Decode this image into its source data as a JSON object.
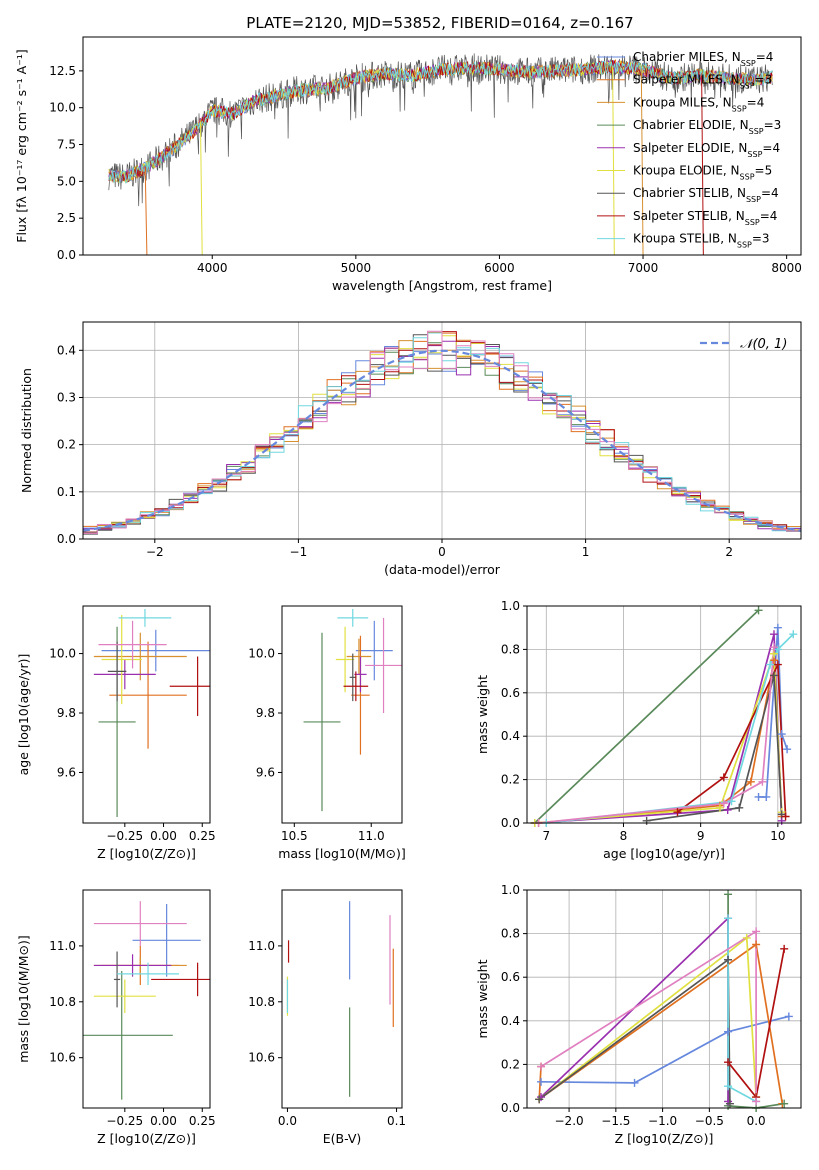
{
  "title": "PLATE=2120, MJD=53852, FIBERID=0164, z=0.167",
  "colors": {
    "chabrier_miles": "#6688dd",
    "salpeter_miles": "#e07020",
    "kroupa_miles": "#d89030",
    "chabrier_elodie": "#5a8a5a",
    "salpeter_elodie": "#9a30b0",
    "kroupa_elodie": "#e0e040",
    "chabrier_stelib": "#555555",
    "salpeter_stelib": "#b01010",
    "kroupa_stelib": "#70d8e0",
    "pink": "#e080c0",
    "normal": "#6688dd"
  },
  "chart_data": [
    {
      "id": "spectrum",
      "type": "line",
      "xlabel": "wavelength [Angstrom, rest frame]",
      "ylabel": "Flux [fλ 10⁻¹⁷ erg cm⁻² s⁻¹ A⁻¹]",
      "xlim": [
        3100,
        8100
      ],
      "ylim": [
        0,
        14.8
      ],
      "xticks": [
        "4000",
        "5000",
        "6000",
        "7000",
        "8000"
      ],
      "yticks": [
        "0.0",
        "2.5",
        "5.0",
        "7.5",
        "10.0",
        "12.5"
      ],
      "x": [
        3280,
        3400,
        3550,
        3700,
        3850,
        4000,
        4150,
        4300,
        4450,
        4600,
        4800,
        5000,
        5200,
        5400,
        5600,
        5800,
        6000,
        6200,
        6400,
        6600,
        6800,
        7000,
        7200,
        7400,
        7600,
        7800,
        7900
      ],
      "y": [
        5.4,
        5.3,
        6.0,
        7.0,
        8.2,
        9.8,
        9.6,
        10.5,
        10.8,
        11.2,
        11.3,
        12.0,
        12.3,
        12.2,
        12.6,
        12.7,
        12.6,
        12.4,
        12.5,
        12.6,
        12.8,
        12.6,
        12.0,
        12.2,
        12.0,
        11.9,
        12.1
      ],
      "legend": [
        {
          "label": "Chabrier MILES, N",
          "sub": "SSP",
          "tail": "=4"
        },
        {
          "label": "Salpeter MILES, N",
          "sub": "SSP",
          "tail": "=3"
        },
        {
          "label": "Kroupa MILES, N",
          "sub": "SSP",
          "tail": "=4"
        },
        {
          "label": "Chabrier ELODIE, N",
          "sub": "SSP",
          "tail": "=3"
        },
        {
          "label": "Salpeter ELODIE, N",
          "sub": "SSP",
          "tail": "=4"
        },
        {
          "label": "Kroupa ELODIE, N",
          "sub": "SSP",
          "tail": "=5"
        },
        {
          "label": "Chabrier STELIB, N",
          "sub": "SSP",
          "tail": "=4"
        },
        {
          "label": "Salpeter STELIB, N",
          "sub": "SSP",
          "tail": "=4"
        },
        {
          "label": "Kroupa STELIB, N",
          "sub": "SSP",
          "tail": "=3"
        }
      ],
      "legend_placement": "right"
    },
    {
      "id": "residuals",
      "type": "histogram",
      "xlabel": "(data-model)/error",
      "ylabel": "Normed distribution",
      "xlim": [
        -2.5,
        2.5
      ],
      "ylim": [
        0,
        0.46
      ],
      "xticks": [
        "−2",
        "−1",
        "0",
        "1",
        "2"
      ],
      "yticks": [
        "0.0",
        "0.1",
        "0.2",
        "0.3",
        "0.4"
      ],
      "bin_width": 0.1,
      "legend_label": "𝒩(0, 1)",
      "legend_placement": "top-right",
      "grid": true
    },
    {
      "id": "age_vs_Z",
      "type": "scatter",
      "xlabel": "Z [log10(Z/Z⊙)]",
      "ylabel": "age  [log10(age/yr)]",
      "xlim": [
        -0.52,
        0.3
      ],
      "ylim": [
        9.43,
        10.16
      ],
      "xticks": [
        "−0.25",
        "0.00",
        "0.25"
      ],
      "yticks": [
        "9.6",
        "9.8",
        "10.0"
      ],
      "points": [
        {
          "series": "Chabrier MILES",
          "x": -0.05,
          "y": 10.01,
          "xerr": 0.35,
          "yerr": 0.07
        },
        {
          "series": "Salpeter MILES",
          "x": -0.1,
          "y": 9.86,
          "xerr": 0.25,
          "yerr": 0.18
        },
        {
          "series": "Kroupa MILES",
          "x": -0.15,
          "y": 9.99,
          "xerr": 0.3,
          "yerr": 0.08
        },
        {
          "series": "Chabrier ELODIE",
          "x": -0.3,
          "y": 9.77,
          "xerr": 0.12,
          "yerr": 0.32
        },
        {
          "series": "Salpeter ELODIE",
          "x": -0.25,
          "y": 9.93,
          "xerr": 0.2,
          "yerr": 0.05
        },
        {
          "series": "Kroupa ELODIE",
          "x": -0.27,
          "y": 9.98,
          "xerr": 0.13,
          "yerr": 0.15
        },
        {
          "series": "Chabrier STELIB",
          "x": -0.3,
          "y": 9.94,
          "xerr": 0.06,
          "yerr": 0.1
        },
        {
          "series": "Salpeter STELIB",
          "x": 0.22,
          "y": 9.89,
          "xerr": 0.18,
          "yerr": 0.1
        },
        {
          "series": "Kroupa STELIB",
          "x": -0.12,
          "y": 10.12,
          "xerr": 0.17,
          "yerr": 0.03
        },
        {
          "series": "pink",
          "x": -0.2,
          "y": 10.03,
          "xerr": 0.22,
          "yerr": 0.08
        }
      ]
    },
    {
      "id": "age_vs_mass",
      "type": "scatter",
      "xlabel": "mass [log10(M/M⊙)]",
      "ylabel": "",
      "xlim": [
        10.42,
        11.2
      ],
      "ylim": [
        9.43,
        10.16
      ],
      "xticks": [
        "10.5",
        "11.0"
      ],
      "yticks": [
        "9.6",
        "9.8",
        "10.0"
      ],
      "points": [
        {
          "series": "Chabrier MILES",
          "x": 11.02,
          "y": 10.01,
          "xerr": 0.12,
          "yerr": 0.1
        },
        {
          "series": "Salpeter MILES",
          "x": 10.93,
          "y": 9.86,
          "xerr": 0.06,
          "yerr": 0.2
        },
        {
          "series": "Kroupa MILES",
          "x": 10.92,
          "y": 9.99,
          "xerr": 0.08,
          "yerr": 0.06
        },
        {
          "series": "Chabrier ELODIE",
          "x": 10.68,
          "y": 9.77,
          "xerr": 0.12,
          "yerr": 0.3
        },
        {
          "series": "Salpeter ELODIE",
          "x": 10.93,
          "y": 9.93,
          "xerr": 0.04,
          "yerr": 0.06
        },
        {
          "series": "Kroupa ELODIE",
          "x": 10.83,
          "y": 9.98,
          "xerr": 0.06,
          "yerr": 0.11
        },
        {
          "series": "Chabrier STELIB",
          "x": 10.88,
          "y": 9.92,
          "xerr": 0.02,
          "yerr": 0.08
        },
        {
          "series": "Salpeter STELIB",
          "x": 10.9,
          "y": 9.89,
          "xerr": 0.08,
          "yerr": 0.05
        },
        {
          "series": "Kroupa STELIB",
          "x": 10.88,
          "y": 10.12,
          "xerr": 0.1,
          "yerr": 0.03
        },
        {
          "series": "pink",
          "x": 11.08,
          "y": 9.96,
          "xerr": 0.12,
          "yerr": 0.16
        }
      ]
    },
    {
      "id": "mass_weight_vs_age",
      "type": "line",
      "xlabel": "age  [log10(age/yr)]",
      "ylabel": "mass weight",
      "xlim": [
        6.75,
        10.3
      ],
      "ylim": [
        0,
        1
      ],
      "xticks": [
        "7",
        "8",
        "9",
        "10"
      ],
      "yticks": [
        "0.0",
        "0.2",
        "0.4",
        "0.6",
        "0.8",
        "1.0"
      ],
      "series": [
        {
          "name": "Chabrier MILES",
          "x": [
            9.75,
            9.85,
            10.0,
            10.05,
            10.12
          ],
          "y": [
            0.12,
            0.12,
            0.9,
            0.41,
            0.34
          ]
        },
        {
          "name": "Salpeter MILES",
          "x": [
            6.9,
            9.25,
            9.65,
            9.95,
            10.05
          ],
          "y": [
            0.0,
            0.08,
            0.19,
            0.75,
            0.03
          ]
        },
        {
          "name": "Chabrier ELODIE",
          "x": [
            6.85,
            9.75
          ],
          "y": [
            0.0,
            0.98
          ]
        },
        {
          "name": "Salpeter ELODIE",
          "x": [
            6.85,
            9.35,
            9.95,
            10.05
          ],
          "y": [
            0.0,
            0.06,
            0.87,
            0.01
          ]
        },
        {
          "name": "Kroupa ELODIE",
          "x": [
            6.85,
            9.25,
            9.95,
            10.05
          ],
          "y": [
            0.0,
            0.07,
            0.78,
            0.05
          ]
        },
        {
          "name": "Chabrier STELIB",
          "x": [
            8.3,
            9.5,
            9.95,
            10.05
          ],
          "y": [
            0.01,
            0.07,
            0.68,
            0.04
          ]
        },
        {
          "name": "Salpeter STELIB",
          "x": [
            8.7,
            9.3,
            10.0,
            10.1
          ],
          "y": [
            0.05,
            0.21,
            0.73,
            0.03
          ]
        },
        {
          "name": "Kroupa STELIB",
          "x": [
            7.0,
            9.4,
            9.9,
            10.0,
            10.2
          ],
          "y": [
            0.0,
            0.1,
            0.73,
            0.8,
            0.87
          ]
        },
        {
          "name": "pink",
          "x": [
            6.9,
            9.3,
            9.8,
            9.95
          ],
          "y": [
            0.0,
            0.09,
            0.19,
            0.81
          ]
        }
      ],
      "grid": true
    },
    {
      "id": "mass_vs_Z",
      "type": "scatter",
      "xlabel": "Z [log10(Z/Z⊙)]",
      "ylabel": "mass [log10(M/M⊙)]",
      "xlim": [
        -0.52,
        0.3
      ],
      "ylim": [
        10.42,
        11.2
      ],
      "xticks": [
        "−0.25",
        "0.00",
        "0.25"
      ],
      "yticks": [
        "10.6",
        "10.8",
        "11.0"
      ],
      "points": [
        {
          "series": "Chabrier MILES",
          "x": 0.02,
          "y": 11.02,
          "xerr": 0.22,
          "yerr": 0.13
        },
        {
          "series": "Salpeter MILES",
          "x": -0.15,
          "y": 10.93,
          "xerr": 0.25,
          "yerr": 0.07
        },
        {
          "series": "Kroupa MILES",
          "x": -0.15,
          "y": 10.93,
          "xerr": 0.3,
          "yerr": 0.03
        },
        {
          "series": "Chabrier ELODIE",
          "x": -0.27,
          "y": 10.68,
          "xerr": 0.33,
          "yerr": 0.23
        },
        {
          "series": "Salpeter ELODIE",
          "x": -0.2,
          "y": 10.93,
          "xerr": 0.25,
          "yerr": 0.04
        },
        {
          "series": "Kroupa ELODIE",
          "x": -0.25,
          "y": 10.82,
          "xerr": 0.2,
          "yerr": 0.06
        },
        {
          "series": "Chabrier STELIB",
          "x": -0.3,
          "y": 10.88,
          "xerr": 0.02,
          "yerr": 0.1
        },
        {
          "series": "Salpeter STELIB",
          "x": 0.22,
          "y": 10.88,
          "xerr": 0.3,
          "yerr": 0.06
        },
        {
          "series": "Kroupa STELIB",
          "x": -0.1,
          "y": 10.9,
          "xerr": 0.2,
          "yerr": 0.04
        },
        {
          "series": "pink",
          "x": -0.15,
          "y": 11.08,
          "xerr": 0.3,
          "yerr": 0.08
        }
      ]
    },
    {
      "id": "mass_vs_ebv",
      "type": "scatter",
      "xlabel": "E(B-V)",
      "ylabel": "",
      "xlim": [
        -0.005,
        0.105
      ],
      "ylim": [
        10.42,
        11.2
      ],
      "xticks": [
        "0.0",
        "0.1"
      ],
      "yticks": [
        "10.6",
        "10.8",
        "11.0"
      ],
      "points": [
        {
          "series": "Chabrier MILES",
          "x": 0.057,
          "y": 11.02,
          "xerr": 0.0,
          "yerr": 0.14
        },
        {
          "series": "Salpeter MILES",
          "x": 0.097,
          "y": 10.85,
          "xerr": 0.0,
          "yerr": 0.14
        },
        {
          "series": "Chabrier ELODIE",
          "x": 0.057,
          "y": 10.62,
          "xerr": 0.0,
          "yerr": 0.16
        },
        {
          "series": "Kroupa ELODIE",
          "x": 0.0,
          "y": 10.82,
          "xerr": 0.0,
          "yerr": 0.07
        },
        {
          "series": "Salpeter STELIB",
          "x": 0.001,
          "y": 10.98,
          "xerr": 0.0,
          "yerr": 0.04
        },
        {
          "series": "pink",
          "x": 0.094,
          "y": 10.95,
          "xerr": 0.0,
          "yerr": 0.16
        },
        {
          "series": "Kroupa STELIB",
          "x": 0.0,
          "y": 10.82,
          "xerr": 0.0,
          "yerr": 0.06
        }
      ]
    },
    {
      "id": "mass_weight_vs_Z",
      "type": "line",
      "xlabel": "Z [log10(Z/Z⊙)]",
      "ylabel": "mass weight",
      "xlim": [
        -2.45,
        0.48
      ],
      "ylim": [
        0,
        1
      ],
      "xticks": [
        "−2.0",
        "−1.5",
        "−1.0",
        "−0.5",
        "0.0"
      ],
      "yticks": [
        "0.0",
        "0.2",
        "0.4",
        "0.6",
        "0.8",
        "1.0"
      ],
      "series": [
        {
          "name": "Chabrier MILES",
          "x": [
            -2.3,
            -1.3,
            -0.3,
            0.35
          ],
          "y": [
            0.12,
            0.115,
            0.35,
            0.42
          ]
        },
        {
          "name": "Salpeter MILES",
          "x": [
            -2.3,
            -2.32,
            0.0,
            0.28
          ],
          "y": [
            0.19,
            0.04,
            0.75,
            0.02
          ]
        },
        {
          "name": "Chabrier ELODIE",
          "x": [
            -0.3,
            -0.3,
            0.0,
            0.3
          ],
          "y": [
            0.98,
            0.01,
            0.0,
            0.02
          ]
        },
        {
          "name": "Salpeter ELODIE",
          "x": [
            -2.3,
            -0.3,
            -0.3
          ],
          "y": [
            0.05,
            0.87,
            0.03
          ]
        },
        {
          "name": "Kroupa ELODIE",
          "x": [
            -2.32,
            -0.1,
            0.0
          ],
          "y": [
            0.04,
            0.78,
            0.05
          ]
        },
        {
          "name": "Chabrier STELIB",
          "x": [
            -2.32,
            -0.3,
            -0.28
          ],
          "y": [
            0.04,
            0.68,
            0.02
          ]
        },
        {
          "name": "Salpeter STELIB",
          "x": [
            -0.3,
            0.0,
            0.3
          ],
          "y": [
            0.21,
            0.05,
            0.73
          ]
        },
        {
          "name": "Kroupa STELIB",
          "x": [
            -0.3,
            -0.3,
            0.0
          ],
          "y": [
            0.87,
            0.1,
            0.03
          ]
        },
        {
          "name": "pink",
          "x": [
            -2.3,
            0.0,
            0.0
          ],
          "y": [
            0.19,
            0.81,
            0.03
          ]
        }
      ],
      "grid": true
    }
  ]
}
